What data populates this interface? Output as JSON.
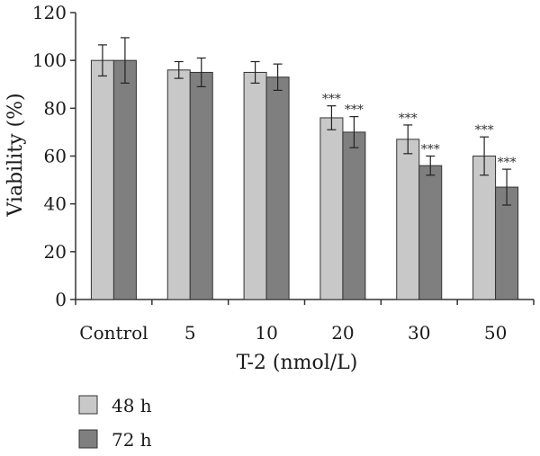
{
  "chart_data": {
    "type": "bar",
    "categories": [
      "Control",
      "5",
      "10",
      "20",
      "30",
      "50"
    ],
    "series": [
      {
        "name": "48 h",
        "color": "#c8c8c8",
        "values": [
          100,
          96,
          95,
          76,
          67,
          60
        ],
        "errors": [
          6.5,
          3.5,
          4.5,
          5,
          6,
          8
        ],
        "significance": [
          "",
          "",
          "",
          "***",
          "***",
          "***"
        ]
      },
      {
        "name": "72 h",
        "color": "#7f7f7f",
        "values": [
          100,
          95,
          93,
          70,
          56,
          47
        ],
        "errors": [
          9.5,
          6,
          5.5,
          6.5,
          4,
          7.5
        ],
        "significance": [
          "",
          "",
          "",
          "***",
          "***",
          "***"
        ]
      }
    ],
    "xlabel": "T-2 (nmol/L)",
    "ylabel": "Viability (%)",
    "ylim": [
      0,
      120
    ],
    "yticks": [
      0,
      20,
      40,
      60,
      80,
      100,
      120
    ],
    "grid": false,
    "legend_position": "bottom-left"
  }
}
